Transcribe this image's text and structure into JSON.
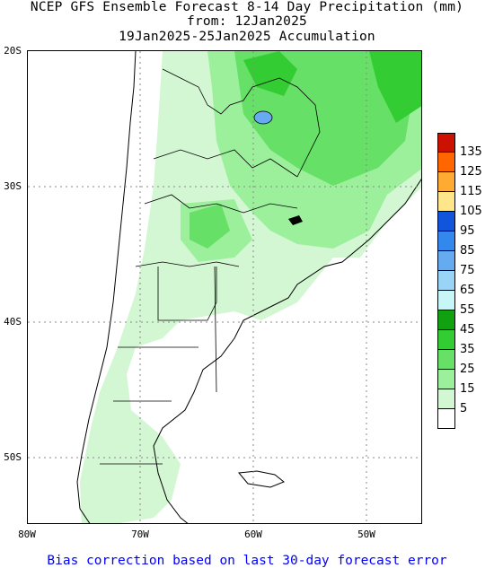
{
  "title": {
    "line1": "NCEP GFS Ensemble Forecast 8-14 Day Precipitation (mm)",
    "line2": "from: 12Jan2025",
    "line3": "19Jan2025-25Jan2025 Accumulation"
  },
  "axes": {
    "lat_labels": [
      "20S",
      "30S",
      "40S",
      "50S"
    ],
    "lon_labels": [
      "80W",
      "70W",
      "60W",
      "50W"
    ]
  },
  "legend": {
    "labels": [
      "135",
      "125",
      "115",
      "105",
      "95",
      "85",
      "75",
      "65",
      "55",
      "45",
      "35",
      "25",
      "15",
      "5"
    ],
    "colors": [
      "#cc1100",
      "#ff6600",
      "#ffaa33",
      "#ffe68a",
      "#1155dd",
      "#3388ee",
      "#66aaf0",
      "#99d3f5",
      "#c8f5f5",
      "#10a010",
      "#33cc33",
      "#66e066",
      "#9cf09c",
      "#d2f7d2",
      "#ffffff"
    ]
  },
  "footer": "Bias correction based on last 30-day forecast error"
}
